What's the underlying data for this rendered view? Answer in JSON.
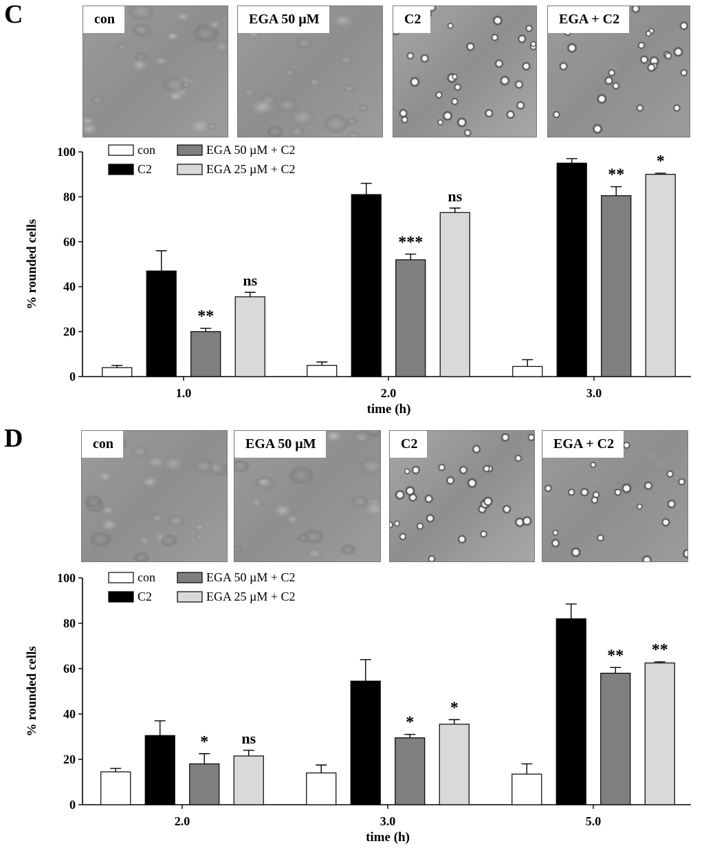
{
  "panels": [
    {
      "letter": "C",
      "micrographs": [
        {
          "label": "con",
          "texture": "spread"
        },
        {
          "label": "EGA 50 µM",
          "texture": "spread"
        },
        {
          "label": "C2",
          "texture": "rounded"
        },
        {
          "label": "EGA + C2",
          "texture": "mixed"
        }
      ]
    },
    {
      "letter": "D",
      "micrographs": [
        {
          "label": "con",
          "texture": "spread"
        },
        {
          "label": "EGA 50 µM",
          "texture": "spread"
        },
        {
          "label": "C2",
          "texture": "rounded"
        },
        {
          "label": "EGA + C2",
          "texture": "mixed"
        }
      ]
    }
  ],
  "chart_data": [
    {
      "type": "bar",
      "title": "",
      "xlabel": "time (h)",
      "ylabel": "% rounded cells",
      "ylim": [
        0,
        100
      ],
      "yticks": [
        0,
        20,
        40,
        60,
        80,
        100
      ],
      "legend": "top-left",
      "categories": [
        "1.0",
        "2.0",
        "3.0"
      ],
      "series": [
        {
          "name": "con",
          "color": "#ffffff",
          "values": [
            4,
            5,
            4.5
          ],
          "errors": [
            1,
            1.5,
            3
          ],
          "sig": [
            "",
            "",
            ""
          ]
        },
        {
          "name": "C2",
          "color": "#000000",
          "values": [
            47,
            81,
            95
          ],
          "errors": [
            9,
            5,
            2
          ],
          "sig": [
            "",
            "",
            ""
          ]
        },
        {
          "name": "EGA 50 µM + C2",
          "color": "#7f7f7f",
          "values": [
            20,
            52,
            80.5
          ],
          "errors": [
            1.5,
            2.5,
            4
          ],
          "sig": [
            "**",
            "***",
            "**"
          ]
        },
        {
          "name": "EGA 25 µM + C2",
          "color": "#d9d9d9",
          "values": [
            35.5,
            73,
            90
          ],
          "errors": [
            2,
            2,
            0.5
          ],
          "sig": [
            "ns",
            "ns",
            "*"
          ]
        }
      ]
    },
    {
      "type": "bar",
      "title": "",
      "xlabel": "time (h)",
      "ylabel": "% rounded cells",
      "ylim": [
        0,
        100
      ],
      "yticks": [
        0,
        20,
        40,
        60,
        80,
        100
      ],
      "legend": "top-left",
      "categories": [
        "2.0",
        "3.0",
        "5.0"
      ],
      "series": [
        {
          "name": "con",
          "color": "#ffffff",
          "values": [
            14.5,
            14,
            13.5
          ],
          "errors": [
            1.5,
            3.5,
            4.5
          ],
          "sig": [
            "",
            "",
            ""
          ]
        },
        {
          "name": "C2",
          "color": "#000000",
          "values": [
            30.5,
            54.5,
            82
          ],
          "errors": [
            6.5,
            9.5,
            6.5
          ],
          "sig": [
            "",
            "",
            ""
          ]
        },
        {
          "name": "EGA 50 µM + C2",
          "color": "#7f7f7f",
          "values": [
            18,
            29.5,
            58
          ],
          "errors": [
            4.5,
            1.5,
            2.5
          ],
          "sig": [
            "*",
            "*",
            "**"
          ]
        },
        {
          "name": "EGA 25 µM + C2",
          "color": "#d9d9d9",
          "values": [
            21.5,
            35.5,
            62.5
          ],
          "errors": [
            2.5,
            2,
            0.5
          ],
          "sig": [
            "ns",
            "*",
            "**"
          ]
        }
      ]
    }
  ]
}
